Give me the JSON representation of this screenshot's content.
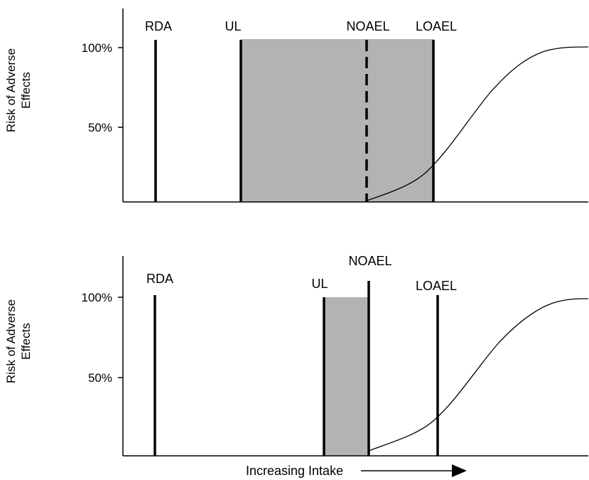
{
  "panels": [
    {
      "marker_labels": {
        "rda": "RDA",
        "ul": "UL",
        "noael": "NOAEL",
        "loael": "LOAEL"
      },
      "y_ticks": [
        "100%",
        "50%"
      ],
      "y_label_line1": "Risk of Adverse",
      "y_label_line2": "Effects",
      "shaded_region": "UL to LOAEL",
      "noael_line_style": "dashed"
    },
    {
      "marker_labels": {
        "rda": "RDA",
        "ul": "UL",
        "noael": "NOAEL",
        "loael": "LOAEL"
      },
      "y_ticks": [
        "100%",
        "50%"
      ],
      "y_label_line1": "Risk of Adverse",
      "y_label_line2": "Effects",
      "shaded_region": "UL to NOAEL",
      "noael_line_style": "solid"
    }
  ],
  "x_label": "Increasing Intake",
  "colors": {
    "shade": "#b3b3b3",
    "line": "#000000",
    "background": "#ffffff"
  }
}
